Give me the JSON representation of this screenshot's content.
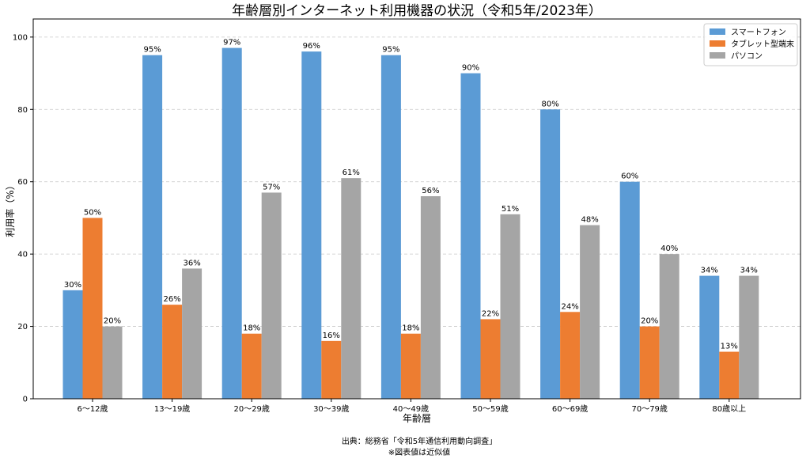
{
  "chart_data": {
    "type": "bar",
    "title": "年齢層別インターネット利用機器の状況（令和5年/2023年）",
    "xlabel": "年齢層",
    "ylabel": "利用率（%）",
    "ylim": [
      0,
      105
    ],
    "yticks": [
      0,
      20,
      40,
      60,
      80,
      100
    ],
    "grid": true,
    "legend_position": "top-right",
    "categories": [
      "6〜12歳",
      "13〜19歳",
      "20〜29歳",
      "30〜39歳",
      "40〜49歳",
      "50〜59歳",
      "60〜69歳",
      "70〜79歳",
      "80歳以上"
    ],
    "series": [
      {
        "name": "スマートフォン",
        "color": "#5B9BD5",
        "values": [
          30,
          95,
          97,
          96,
          95,
          90,
          80,
          60,
          34
        ]
      },
      {
        "name": "タブレット型端末",
        "color": "#ED7D31",
        "values": [
          50,
          26,
          18,
          16,
          18,
          22,
          24,
          20,
          13
        ]
      },
      {
        "name": "パソコン",
        "color": "#A5A5A5",
        "values": [
          20,
          36,
          57,
          61,
          56,
          51,
          48,
          40,
          34
        ]
      }
    ],
    "value_suffix": "%",
    "source_lines": [
      "出典：総務省「令和5年通信利用動向調査」",
      "※図表値は近似値"
    ]
  }
}
